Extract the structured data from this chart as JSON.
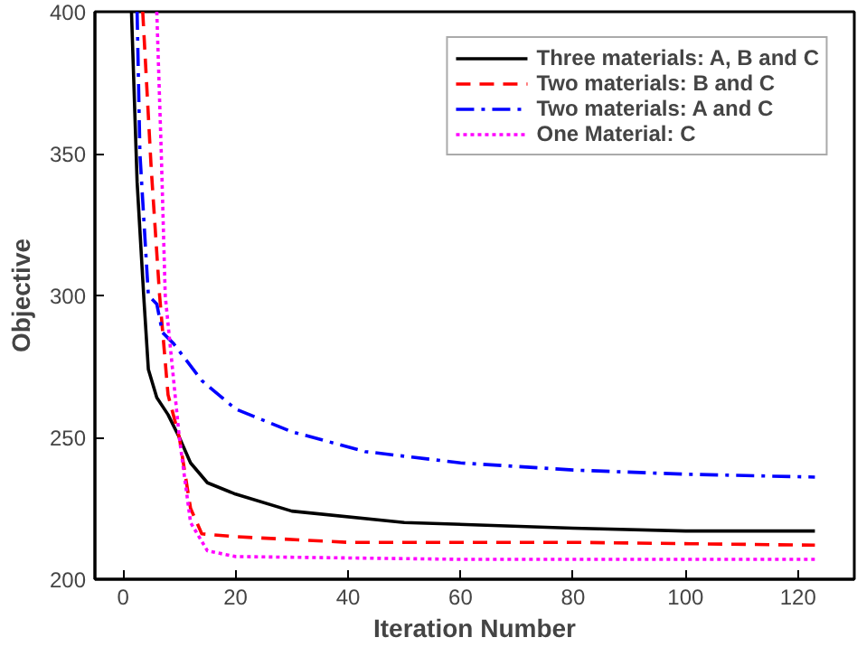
{
  "chart_data": {
    "type": "line",
    "xlabel": "Iteration Number",
    "ylabel": "Objective",
    "xlim": [
      -5,
      130
    ],
    "ylim": [
      200,
      400
    ],
    "xticks": [
      0,
      20,
      40,
      60,
      80,
      100,
      120
    ],
    "yticks": [
      200,
      250,
      300,
      350,
      400
    ],
    "grid": false,
    "legend": "top right",
    "marker": "none",
    "series": [
      {
        "name": "Three materials: A, B and C",
        "color": "#000000",
        "line_style": "solid",
        "x": [
          1.5,
          2.5,
          3.7,
          4.5,
          6,
          8,
          10,
          12,
          15,
          20,
          30,
          50,
          80,
          100,
          123
        ],
        "values": [
          400,
          340,
          299,
          274,
          264,
          258,
          250,
          241,
          234,
          230,
          224,
          220,
          218,
          217,
          217
        ]
      },
      {
        "name": "Two materials: B and C",
        "color": "#ff0000",
        "line_style": "dashed",
        "x": [
          3.5,
          5,
          6.5,
          8,
          10,
          12,
          14,
          20,
          40,
          80,
          123
        ],
        "values": [
          400,
          345,
          300,
          265,
          250,
          225,
          216,
          215,
          213,
          213,
          212
        ]
      },
      {
        "name": "Two materials: A and C",
        "color": "#0000ff",
        "line_style": "dashdot",
        "x": [
          2.5,
          3,
          4.5,
          6,
          7,
          9,
          14,
          20,
          30,
          43,
          60,
          80,
          100,
          123
        ],
        "values": [
          400,
          350,
          300,
          297,
          287,
          283,
          270,
          260,
          252,
          245,
          241,
          238.5,
          237,
          236
        ]
      },
      {
        "name": "One Material: C",
        "color": "#ff00ff",
        "line_style": "dotted",
        "x": [
          6,
          6.8,
          7.5,
          9,
          10,
          12,
          15,
          20,
          60,
          123
        ],
        "values": [
          400,
          350,
          300,
          270,
          250,
          220,
          210,
          208,
          207,
          207
        ]
      }
    ]
  }
}
